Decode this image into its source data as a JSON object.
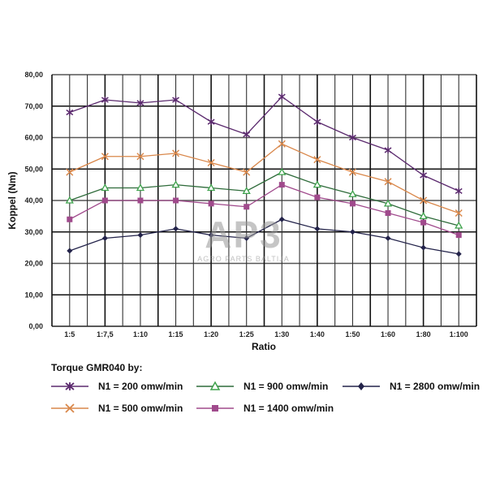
{
  "chart_data": {
    "type": "line",
    "title": "Torque GMR040 by:",
    "xlabel": "Ratio",
    "ylabel": "Koppel (Nm)",
    "ylim": [
      0,
      80
    ],
    "yticks": [
      "0,00",
      "10,00",
      "20,00",
      "30,00",
      "40,00",
      "50,00",
      "60,00",
      "70,00",
      "80,00"
    ],
    "grid": true,
    "legend_position": "bottom",
    "categories": [
      "1:5",
      "1:7,5",
      "1:10",
      "1:15",
      "1:20",
      "1:25",
      "1:30",
      "1:40",
      "1:50",
      "1:60",
      "1:80",
      "1:100"
    ],
    "series": [
      {
        "name": "N1 = 200 omw/min",
        "color": "#5b2a6e",
        "marker": "star",
        "values": [
          68,
          72,
          71,
          72,
          65,
          61,
          73,
          65,
          60,
          56,
          48,
          43
        ]
      },
      {
        "name": "N1 = 500 omw/min",
        "color": "#d9874a",
        "marker": "x",
        "values": [
          49,
          54,
          54,
          55,
          52,
          49,
          58,
          53,
          49,
          46,
          40,
          36
        ]
      },
      {
        "name": "N1 = 900 omw/min",
        "color": "#2e6b3a",
        "marker": "triangle",
        "values": [
          40,
          44,
          44,
          45,
          44,
          43,
          49,
          45,
          42,
          39,
          35,
          32
        ]
      },
      {
        "name": "N1 = 1400 omw/min",
        "color": "#a04a8c",
        "marker": "square",
        "values": [
          34,
          40,
          40,
          40,
          39,
          38,
          45,
          41,
          39,
          36,
          33,
          29
        ]
      },
      {
        "name": "N1 = 2800 omw/min",
        "color": "#23234a",
        "marker": "diamond",
        "values": [
          24,
          28,
          29,
          31,
          29,
          28,
          34,
          31,
          30,
          28,
          25,
          23
        ]
      }
    ]
  },
  "legend": {
    "title": "Torque GMR040 by:",
    "items": [
      {
        "label": "N1 = 200 omw/min"
      },
      {
        "label": "N1 = 900 omw/min"
      },
      {
        "label": "N1 = 2800 omw/min"
      },
      {
        "label": "N1 = 500 omw/min"
      },
      {
        "label": "N1 = 1400 omw/min"
      }
    ]
  },
  "watermark": {
    "logo": "AP3",
    "text": "AGRO PARTS BALTIJA"
  }
}
